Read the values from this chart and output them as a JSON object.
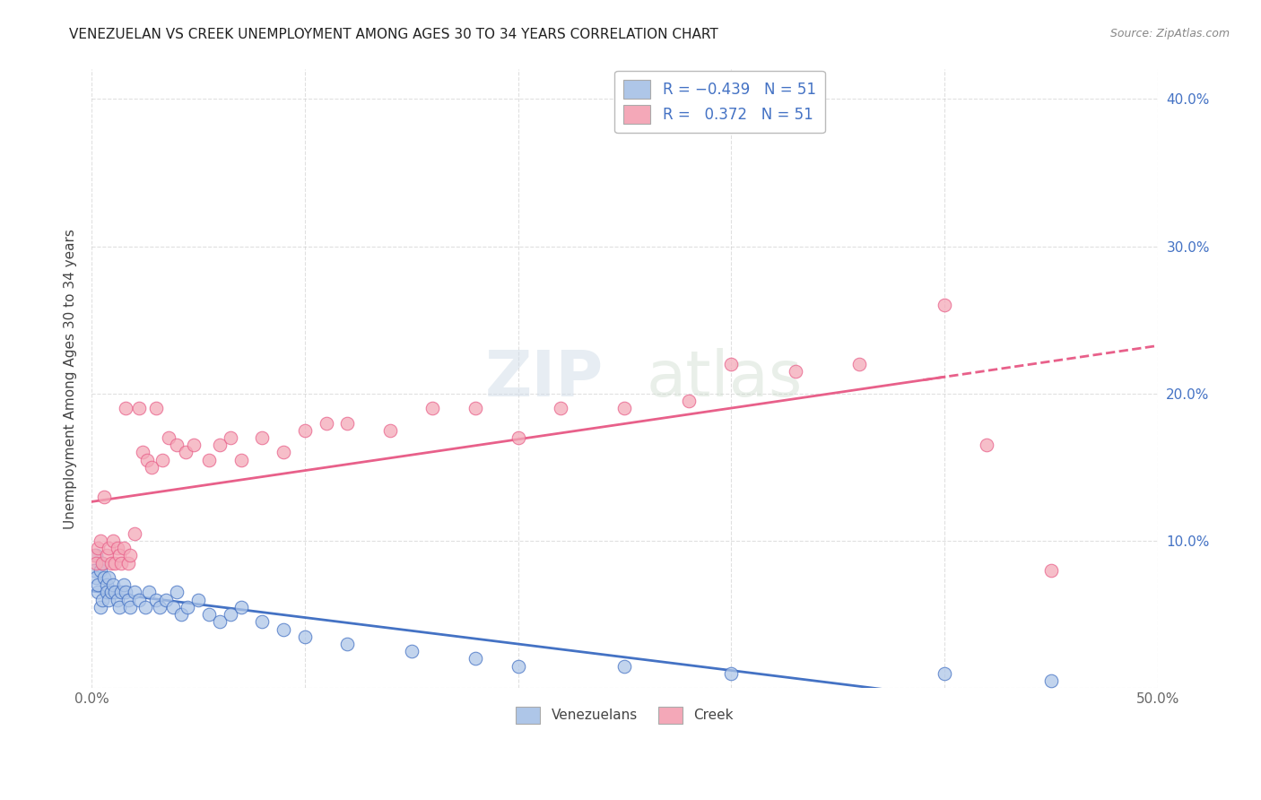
{
  "title": "VENEZUELAN VS CREEK UNEMPLOYMENT AMONG AGES 30 TO 34 YEARS CORRELATION CHART",
  "source": "Source: ZipAtlas.com",
  "ylabel": "Unemployment Among Ages 30 to 34 years",
  "xlim": [
    0.0,
    0.5
  ],
  "ylim": [
    0.0,
    0.42
  ],
  "venezuelan_color": "#aec6e8",
  "creek_color": "#f4a8b8",
  "venezuelan_line_color": "#4472c4",
  "creek_line_color": "#e8608a",
  "venezuelan_r": -0.439,
  "creek_r": 0.372,
  "n": 51,
  "background_color": "#ffffff",
  "grid_color": "#cccccc",
  "watermark_zip": "ZIP",
  "watermark_atlas": "atlas",
  "legend_venezuelan_label": "Venezuelans",
  "legend_creek_label": "Creek",
  "venezuelan_x": [
    0.001,
    0.002,
    0.002,
    0.003,
    0.003,
    0.004,
    0.004,
    0.005,
    0.005,
    0.006,
    0.007,
    0.007,
    0.008,
    0.008,
    0.009,
    0.01,
    0.011,
    0.012,
    0.013,
    0.014,
    0.015,
    0.016,
    0.017,
    0.018,
    0.02,
    0.022,
    0.025,
    0.027,
    0.03,
    0.032,
    0.035,
    0.038,
    0.04,
    0.042,
    0.045,
    0.05,
    0.055,
    0.06,
    0.065,
    0.07,
    0.08,
    0.09,
    0.1,
    0.12,
    0.15,
    0.18,
    0.2,
    0.25,
    0.3,
    0.4,
    0.45
  ],
  "venezuelan_y": [
    0.08,
    0.075,
    0.09,
    0.065,
    0.07,
    0.08,
    0.055,
    0.085,
    0.06,
    0.075,
    0.07,
    0.065,
    0.075,
    0.06,
    0.065,
    0.07,
    0.065,
    0.06,
    0.055,
    0.065,
    0.07,
    0.065,
    0.06,
    0.055,
    0.065,
    0.06,
    0.055,
    0.065,
    0.06,
    0.055,
    0.06,
    0.055,
    0.065,
    0.05,
    0.055,
    0.06,
    0.05,
    0.045,
    0.05,
    0.055,
    0.045,
    0.04,
    0.035,
    0.03,
    0.025,
    0.02,
    0.015,
    0.015,
    0.01,
    0.01,
    0.005
  ],
  "creek_x": [
    0.001,
    0.002,
    0.003,
    0.004,
    0.005,
    0.006,
    0.007,
    0.008,
    0.009,
    0.01,
    0.011,
    0.012,
    0.013,
    0.014,
    0.015,
    0.016,
    0.017,
    0.018,
    0.02,
    0.022,
    0.024,
    0.026,
    0.028,
    0.03,
    0.033,
    0.036,
    0.04,
    0.044,
    0.048,
    0.055,
    0.06,
    0.065,
    0.07,
    0.08,
    0.09,
    0.1,
    0.11,
    0.12,
    0.14,
    0.16,
    0.18,
    0.2,
    0.22,
    0.25,
    0.28,
    0.3,
    0.33,
    0.36,
    0.4,
    0.42,
    0.45
  ],
  "creek_y": [
    0.09,
    0.085,
    0.095,
    0.1,
    0.085,
    0.13,
    0.09,
    0.095,
    0.085,
    0.1,
    0.085,
    0.095,
    0.09,
    0.085,
    0.095,
    0.19,
    0.085,
    0.09,
    0.105,
    0.19,
    0.16,
    0.155,
    0.15,
    0.19,
    0.155,
    0.17,
    0.165,
    0.16,
    0.165,
    0.155,
    0.165,
    0.17,
    0.155,
    0.17,
    0.16,
    0.175,
    0.18,
    0.18,
    0.175,
    0.19,
    0.19,
    0.17,
    0.19,
    0.19,
    0.195,
    0.22,
    0.215,
    0.22,
    0.26,
    0.165,
    0.08
  ]
}
